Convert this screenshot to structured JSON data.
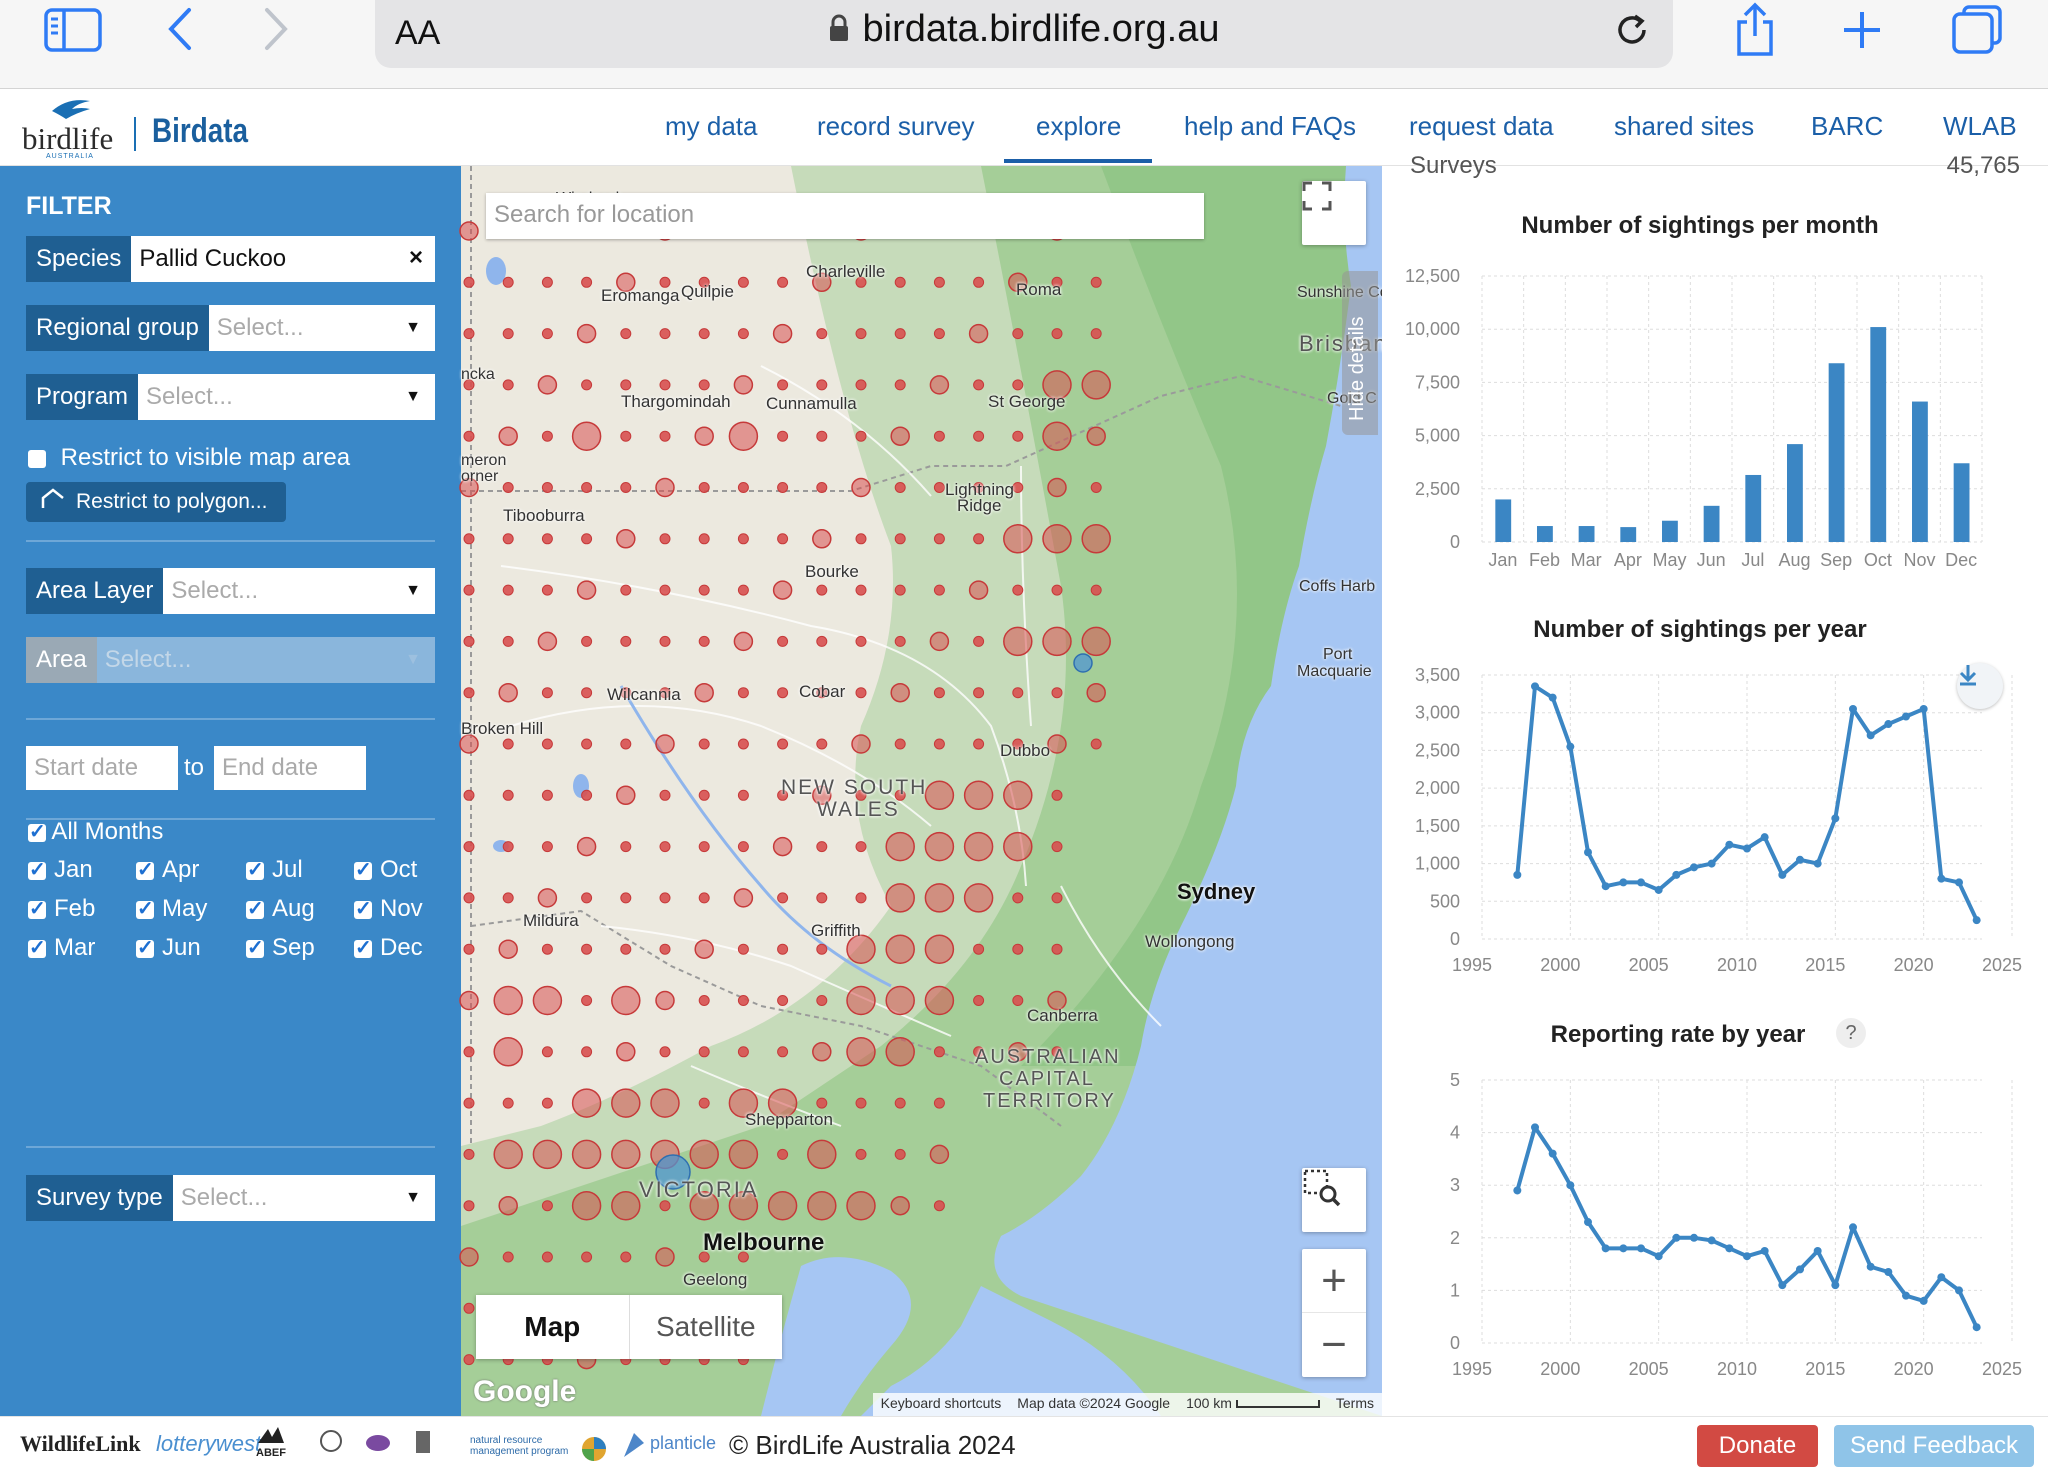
{
  "browser": {
    "text_size_label": "AA",
    "url": "birdata.birdlife.org.au"
  },
  "site": {
    "logo_text": "birdlife",
    "logo_sub": "AUSTRALIA",
    "app_name": "Birdata",
    "nav": [
      "my data",
      "record survey",
      "explore",
      "help and FAQs",
      "request data",
      "shared sites",
      "BARC",
      "WLAB"
    ],
    "active_nav": "explore"
  },
  "filter": {
    "title": "FILTER",
    "species_label": "Species",
    "species_value": "Pallid Cuckoo",
    "regional_group_label": "Regional group",
    "regional_group_placeholder": "Select...",
    "program_label": "Program",
    "program_placeholder": "Select...",
    "restrict_visible_label": "Restrict to visible map area",
    "restrict_polygon_label": "Restrict to polygon...",
    "area_layer_label": "Area Layer",
    "area_layer_placeholder": "Select...",
    "area_label": "Area",
    "area_placeholder": "Select...",
    "start_date_placeholder": "Start date",
    "to_label": "to",
    "end_date_placeholder": "End date",
    "all_months_label": "All Months",
    "months": [
      "Jan",
      "Apr",
      "Jul",
      "Oct",
      "Feb",
      "May",
      "Aug",
      "Nov",
      "Mar",
      "Jun",
      "Sep",
      "Dec"
    ],
    "survey_type_label": "Survey type",
    "survey_type_placeholder": "Select..."
  },
  "map": {
    "search_placeholder": "Search for location",
    "map_btn": "Map",
    "satellite_btn": "Satellite",
    "attribution": [
      "Keyboard shortcuts",
      "Map data ©2024 Google",
      "100 km",
      "Terms"
    ],
    "google_label": "Google",
    "hide_details": "Hide details",
    "places": [
      {
        "name": "Windorah"
      },
      {
        "name": "Charleville"
      },
      {
        "name": "Roma"
      },
      {
        "name": "Eromanga"
      },
      {
        "name": "Quilpie"
      },
      {
        "name": "Sunshine Co"
      },
      {
        "name": "Brisban"
      },
      {
        "name": "Gold C"
      },
      {
        "name": "ncka"
      },
      {
        "name": "Thargomindah"
      },
      {
        "name": "Cunnamulla"
      },
      {
        "name": "St George"
      },
      {
        "name": "meron"
      },
      {
        "name": "orner"
      },
      {
        "name": "Lightning"
      },
      {
        "name": "Ridge"
      },
      {
        "name": "Tibooburra"
      },
      {
        "name": "Bourke"
      },
      {
        "name": "Coffs Harb"
      },
      {
        "name": "Port"
      },
      {
        "name": "Macquarie"
      },
      {
        "name": "Wilcannia"
      },
      {
        "name": "Cobar"
      },
      {
        "name": "Broken Hill"
      },
      {
        "name": "Dubbo"
      },
      {
        "name": "NEW SOUTH"
      },
      {
        "name": "WALES"
      },
      {
        "name": "Sydney"
      },
      {
        "name": "Wollongong"
      },
      {
        "name": "Mildura"
      },
      {
        "name": "Griffith"
      },
      {
        "name": "Canberra"
      },
      {
        "name": "AUSTRALIAN"
      },
      {
        "name": "CAPITAL"
      },
      {
        "name": "TERRITORY"
      },
      {
        "name": "Shepparton"
      },
      {
        "name": "VICTORIA"
      },
      {
        "name": "Melbourne"
      },
      {
        "name": "Geelong"
      }
    ]
  },
  "panel": {
    "partial_header_left": "Surveys",
    "partial_header_right": "45,765"
  },
  "chart_data": [
    {
      "type": "bar",
      "title": "Number of sightings per month",
      "categories": [
        "Jan",
        "Feb",
        "Mar",
        "Apr",
        "May",
        "Jun",
        "Jul",
        "Aug",
        "Sep",
        "Oct",
        "Nov",
        "Dec"
      ],
      "values": [
        2000,
        750,
        750,
        700,
        1000,
        1700,
        3150,
        4600,
        8400,
        10100,
        6600,
        3700
      ],
      "ylim": [
        0,
        12500
      ],
      "yticks": [
        0,
        2500,
        5000,
        7500,
        10000,
        12500
      ],
      "ytick_labels": [
        "0",
        "2,500",
        "5,000",
        "7,500",
        "10,000",
        "12,500"
      ],
      "color": "#3b86c4",
      "grid": true
    },
    {
      "type": "line",
      "title": "Number of sightings per year",
      "x": [
        1997,
        1998,
        1999,
        2000,
        2001,
        2002,
        2003,
        2004,
        2005,
        2006,
        2007,
        2008,
        2009,
        2010,
        2011,
        2012,
        2013,
        2014,
        2015,
        2016,
        2017,
        2018,
        2019,
        2020,
        2021,
        2022,
        2023
      ],
      "y": [
        850,
        3350,
        3200,
        2550,
        1150,
        700,
        750,
        750,
        650,
        850,
        950,
        1000,
        1250,
        1200,
        1350,
        850,
        1050,
        1000,
        1600,
        3050,
        2700,
        2850,
        2950,
        3050,
        800,
        750,
        250
      ],
      "xlim": [
        1995,
        2025
      ],
      "xticks": [
        1995,
        2000,
        2005,
        2010,
        2015,
        2020,
        2025
      ],
      "ylim": [
        0,
        3500
      ],
      "yticks": [
        0,
        500,
        1000,
        1500,
        2000,
        2500,
        3000,
        3500
      ],
      "ytick_labels": [
        "0",
        "500",
        "1,000",
        "1,500",
        "2,000",
        "2,500",
        "3,000",
        "3,500"
      ],
      "color": "#3b86c4",
      "grid": true
    },
    {
      "type": "line",
      "title": "Reporting rate by year",
      "help_icon_label": "?",
      "x": [
        1997,
        1998,
        1999,
        2000,
        2001,
        2002,
        2003,
        2004,
        2005,
        2006,
        2007,
        2008,
        2009,
        2010,
        2011,
        2012,
        2013,
        2014,
        2015,
        2016,
        2017,
        2018,
        2019,
        2020,
        2021,
        2022,
        2023
      ],
      "y": [
        2.9,
        4.1,
        3.6,
        3.0,
        2.3,
        1.8,
        1.8,
        1.8,
        1.65,
        2.0,
        2.0,
        1.95,
        1.8,
        1.65,
        1.75,
        1.1,
        1.4,
        1.75,
        1.1,
        2.2,
        1.45,
        1.35,
        0.9,
        0.8,
        1.25,
        1.0,
        0.3
      ],
      "xlim": [
        1995,
        2025
      ],
      "xticks": [
        1995,
        2000,
        2005,
        2010,
        2015,
        2020,
        2025
      ],
      "ylim": [
        0,
        5
      ],
      "yticks": [
        0,
        1,
        2,
        3,
        4,
        5
      ],
      "color": "#3b86c4",
      "grid": true
    }
  ],
  "footer": {
    "partners": [
      "WildlifeLink",
      "lotterywest",
      "ABEF",
      "natural resource management program",
      "planticle"
    ],
    "copyright": "© BirdLife Australia 2024",
    "donate": "Donate",
    "feedback": "Send Feedback"
  }
}
